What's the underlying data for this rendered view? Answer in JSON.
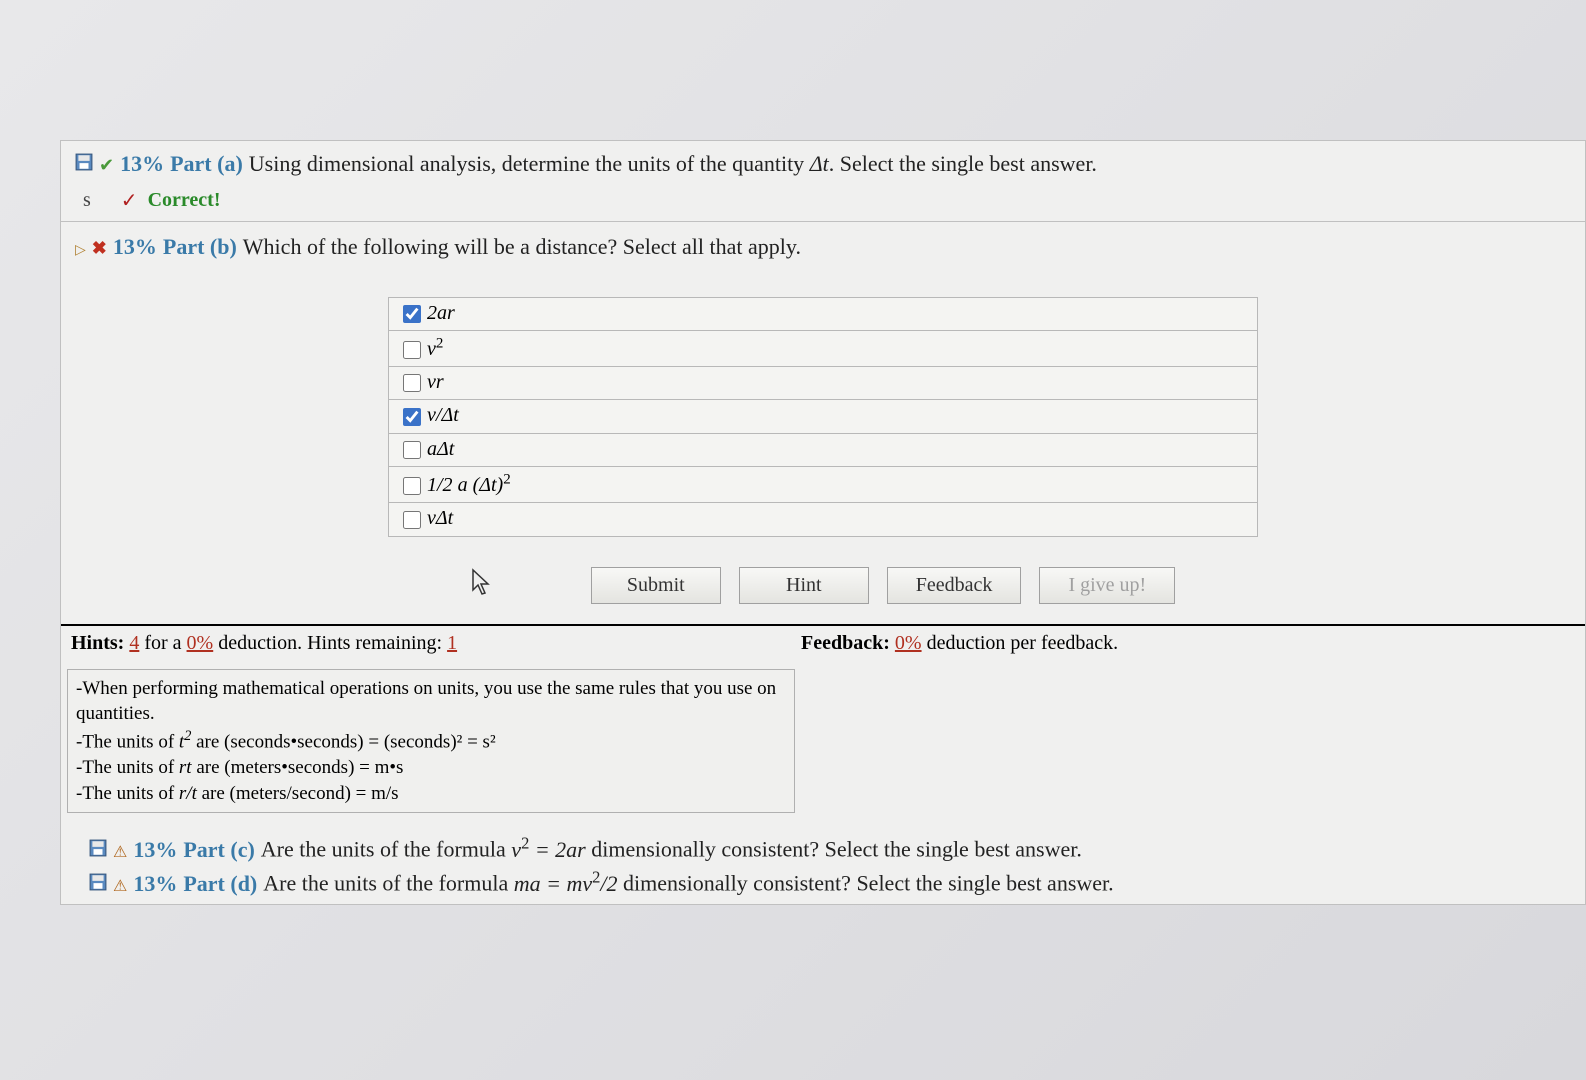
{
  "partA": {
    "percent": "13%",
    "label": "Part (a)",
    "question_prefix": "Using dimensional analysis, determine the units of the quantity ",
    "question_var": "Δt",
    "question_suffix": ". Select the single best answer.",
    "answer_given": "s",
    "correct_text": "Correct!"
  },
  "partB": {
    "percent": "13%",
    "label": "Part (b)",
    "question": "Which of the following will be a distance? Select all that apply.",
    "options": [
      {
        "text": "2ar",
        "checked": true
      },
      {
        "text": "v²",
        "checked": false
      },
      {
        "text": "vr",
        "checked": false
      },
      {
        "text": "v/Δt",
        "checked": true
      },
      {
        "text": "aΔt",
        "checked": false
      },
      {
        "text": "1/2 a (Δt)²",
        "checked": false
      },
      {
        "text": "vΔt",
        "checked": false
      }
    ],
    "buttons": {
      "submit": "Submit",
      "hint": "Hint",
      "feedback": "Feedback",
      "giveup": "I give up!"
    }
  },
  "hints": {
    "label": "Hints:",
    "count": "4",
    "mid1": "for a",
    "deduction": "0%",
    "mid2": "deduction. Hints remaining:",
    "remaining": "1",
    "feedback_label": "Feedback:",
    "feedback_pct": "0%",
    "feedback_suffix": "deduction per feedback.",
    "box_line1": "-When performing mathematical operations on units, you use the same rules that you use on quantities.",
    "box_line2_pre": "-The units of ",
    "box_line2_var": "t",
    "box_line2_post": " are (seconds•seconds) = (seconds)² = s²",
    "box_line3_pre": "-The units of ",
    "box_line3_var": "rt",
    "box_line3_post": " are (meters•seconds) = m•s",
    "box_line4_pre": "-The units of ",
    "box_line4_var": "r/t",
    "box_line4_post": " are (meters/second) = m/s"
  },
  "partC": {
    "percent": "13%",
    "label": "Part (c)",
    "q_pre": "Are the units of the formula ",
    "q_formula": "v² = 2ar",
    "q_post": " dimensionally consistent? Select the single best answer."
  },
  "partD": {
    "percent": "13%",
    "label": "Part (d)",
    "q_pre": "Are the units of the formula ",
    "q_formula": "ma = mv²/2",
    "q_post": " dimensionally consistent? Select the single best answer."
  }
}
